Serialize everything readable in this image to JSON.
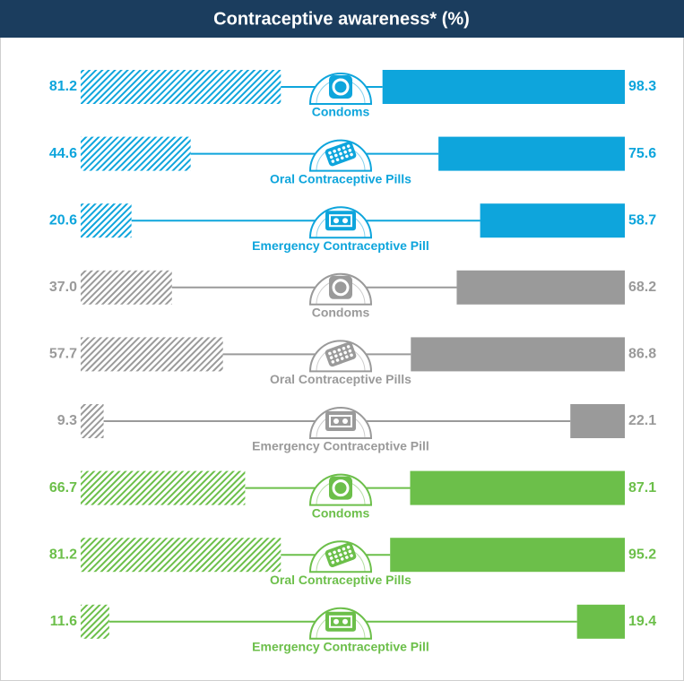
{
  "chart_data": {
    "type": "paired_bar",
    "title": "Contraceptive awareness* (%)",
    "categories": [
      "Condoms",
      "Oral Contraceptive Pills",
      "Emergency Contraceptive Pill",
      "Condoms",
      "Oral Contraceptive Pills",
      "Emergency Contraceptive Pill",
      "Condoms",
      "Oral Contraceptive Pills",
      "Emergency Contraceptive Pill"
    ],
    "left_values": [
      81.2,
      44.6,
      20.6,
      37.0,
      57.7,
      9.3,
      66.7,
      81.2,
      11.6
    ],
    "left_value_labels": [
      "81.2",
      "44.6",
      "20.6",
      "37.0",
      "57.7",
      "9.3",
      "66.7",
      "81.2",
      "11.6"
    ],
    "right_values": [
      98.3,
      75.6,
      58.7,
      68.2,
      86.8,
      22.1,
      87.1,
      95.2,
      19.4
    ],
    "right_value_labels": [
      "98.3",
      "75.6",
      "58.7",
      "68.2",
      "86.8",
      "22.1",
      "87.1",
      "95.2",
      "19.4"
    ],
    "colors": [
      "#0ea5dc",
      "#0ea5dc",
      "#0ea5dc",
      "#9a9a9a",
      "#9a9a9a",
      "#9a9a9a",
      "#6cbf4a",
      "#6cbf4a",
      "#6cbf4a"
    ],
    "xlim": [
      0,
      100
    ]
  }
}
